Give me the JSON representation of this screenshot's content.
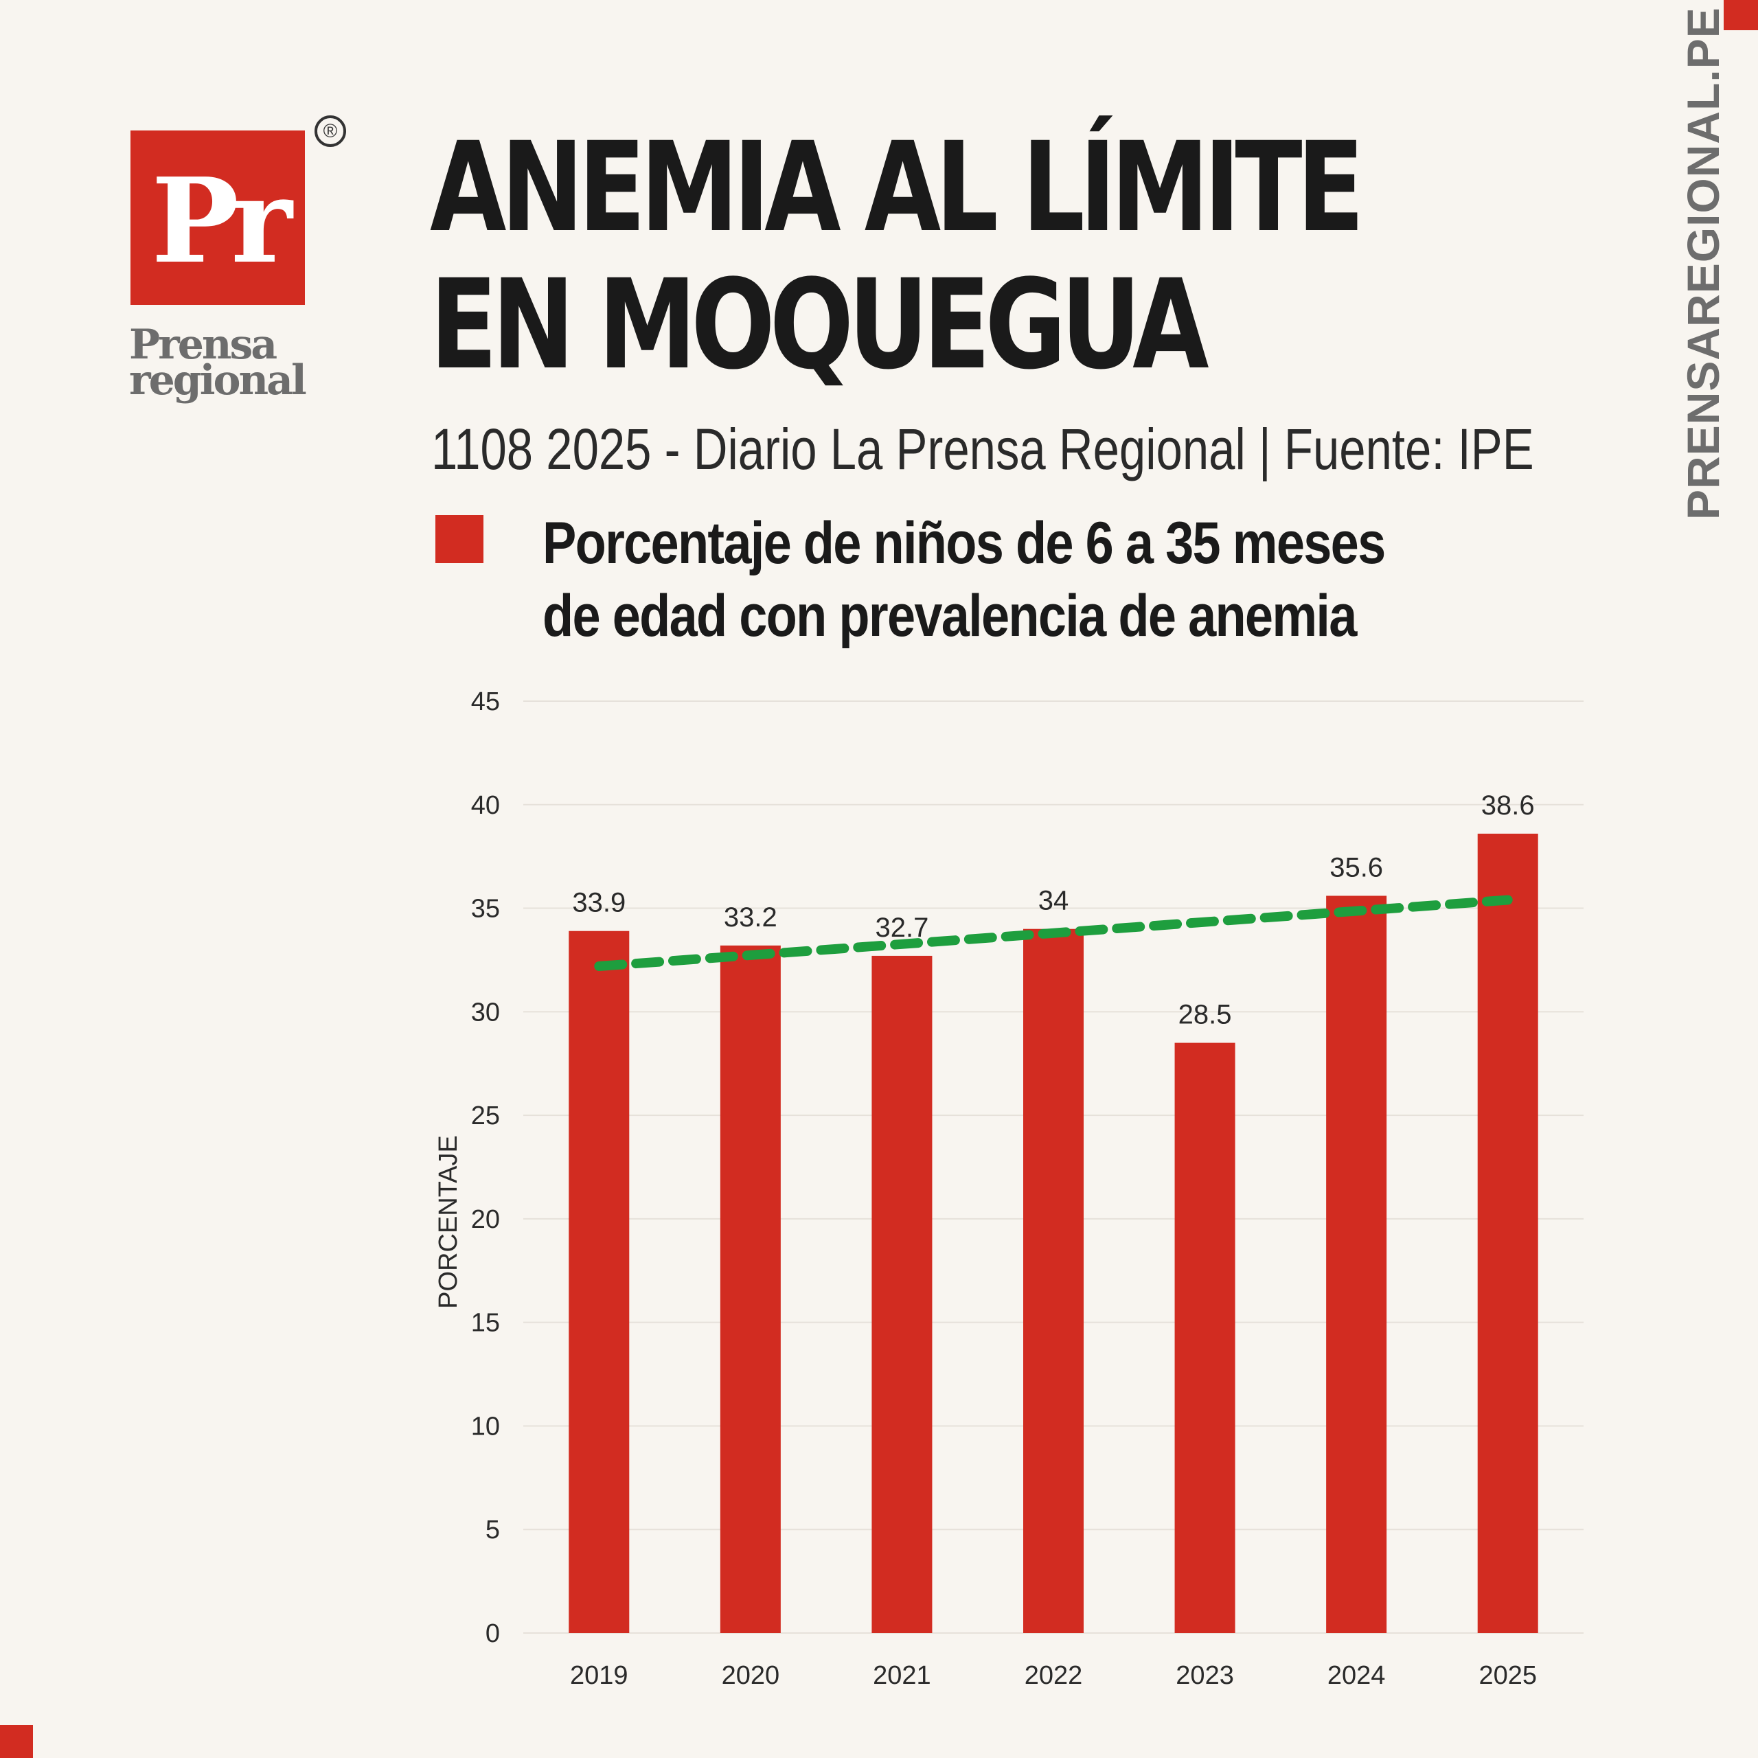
{
  "brand": {
    "logo_mark": "Pr",
    "registered": "®",
    "wordmark_line1": "Prensa",
    "wordmark_line2": "regional",
    "side_url": "PRENSAREGIONAL.PE",
    "accent_color": "#d22c21"
  },
  "header": {
    "title_line1": "ANEMIA AL LÍMITE",
    "title_line2": "EN MOQUEGUA",
    "subtitle": "1108 2025 - Diario La Prensa Regional | Fuente: IPE",
    "legend_line1": "Porcentaje de niños de 6 a 35 meses",
    "legend_line2": "de edad con prevalencia de anemia"
  },
  "chart_data": {
    "type": "bar",
    "categories": [
      "2019",
      "2020",
      "2021",
      "2022",
      "2023",
      "2024",
      "2025"
    ],
    "values": [
      33.9,
      33.2,
      32.7,
      34,
      28.5,
      35.6,
      38.6
    ],
    "data_labels": [
      "33.9",
      "33.2",
      "32.7",
      "34",
      "28.5",
      "35.6",
      "38.6"
    ],
    "ylabel": "PORCENTAJE",
    "xlabel": "",
    "ylim": [
      0,
      45
    ],
    "yticks": [
      0,
      5,
      10,
      15,
      20,
      25,
      30,
      35,
      40,
      45
    ],
    "grid": true,
    "bar_color": "#d22c21",
    "trendline": {
      "style": "dashed",
      "color": "#1e9e3e",
      "start": 32.2,
      "end": 35.4
    }
  }
}
